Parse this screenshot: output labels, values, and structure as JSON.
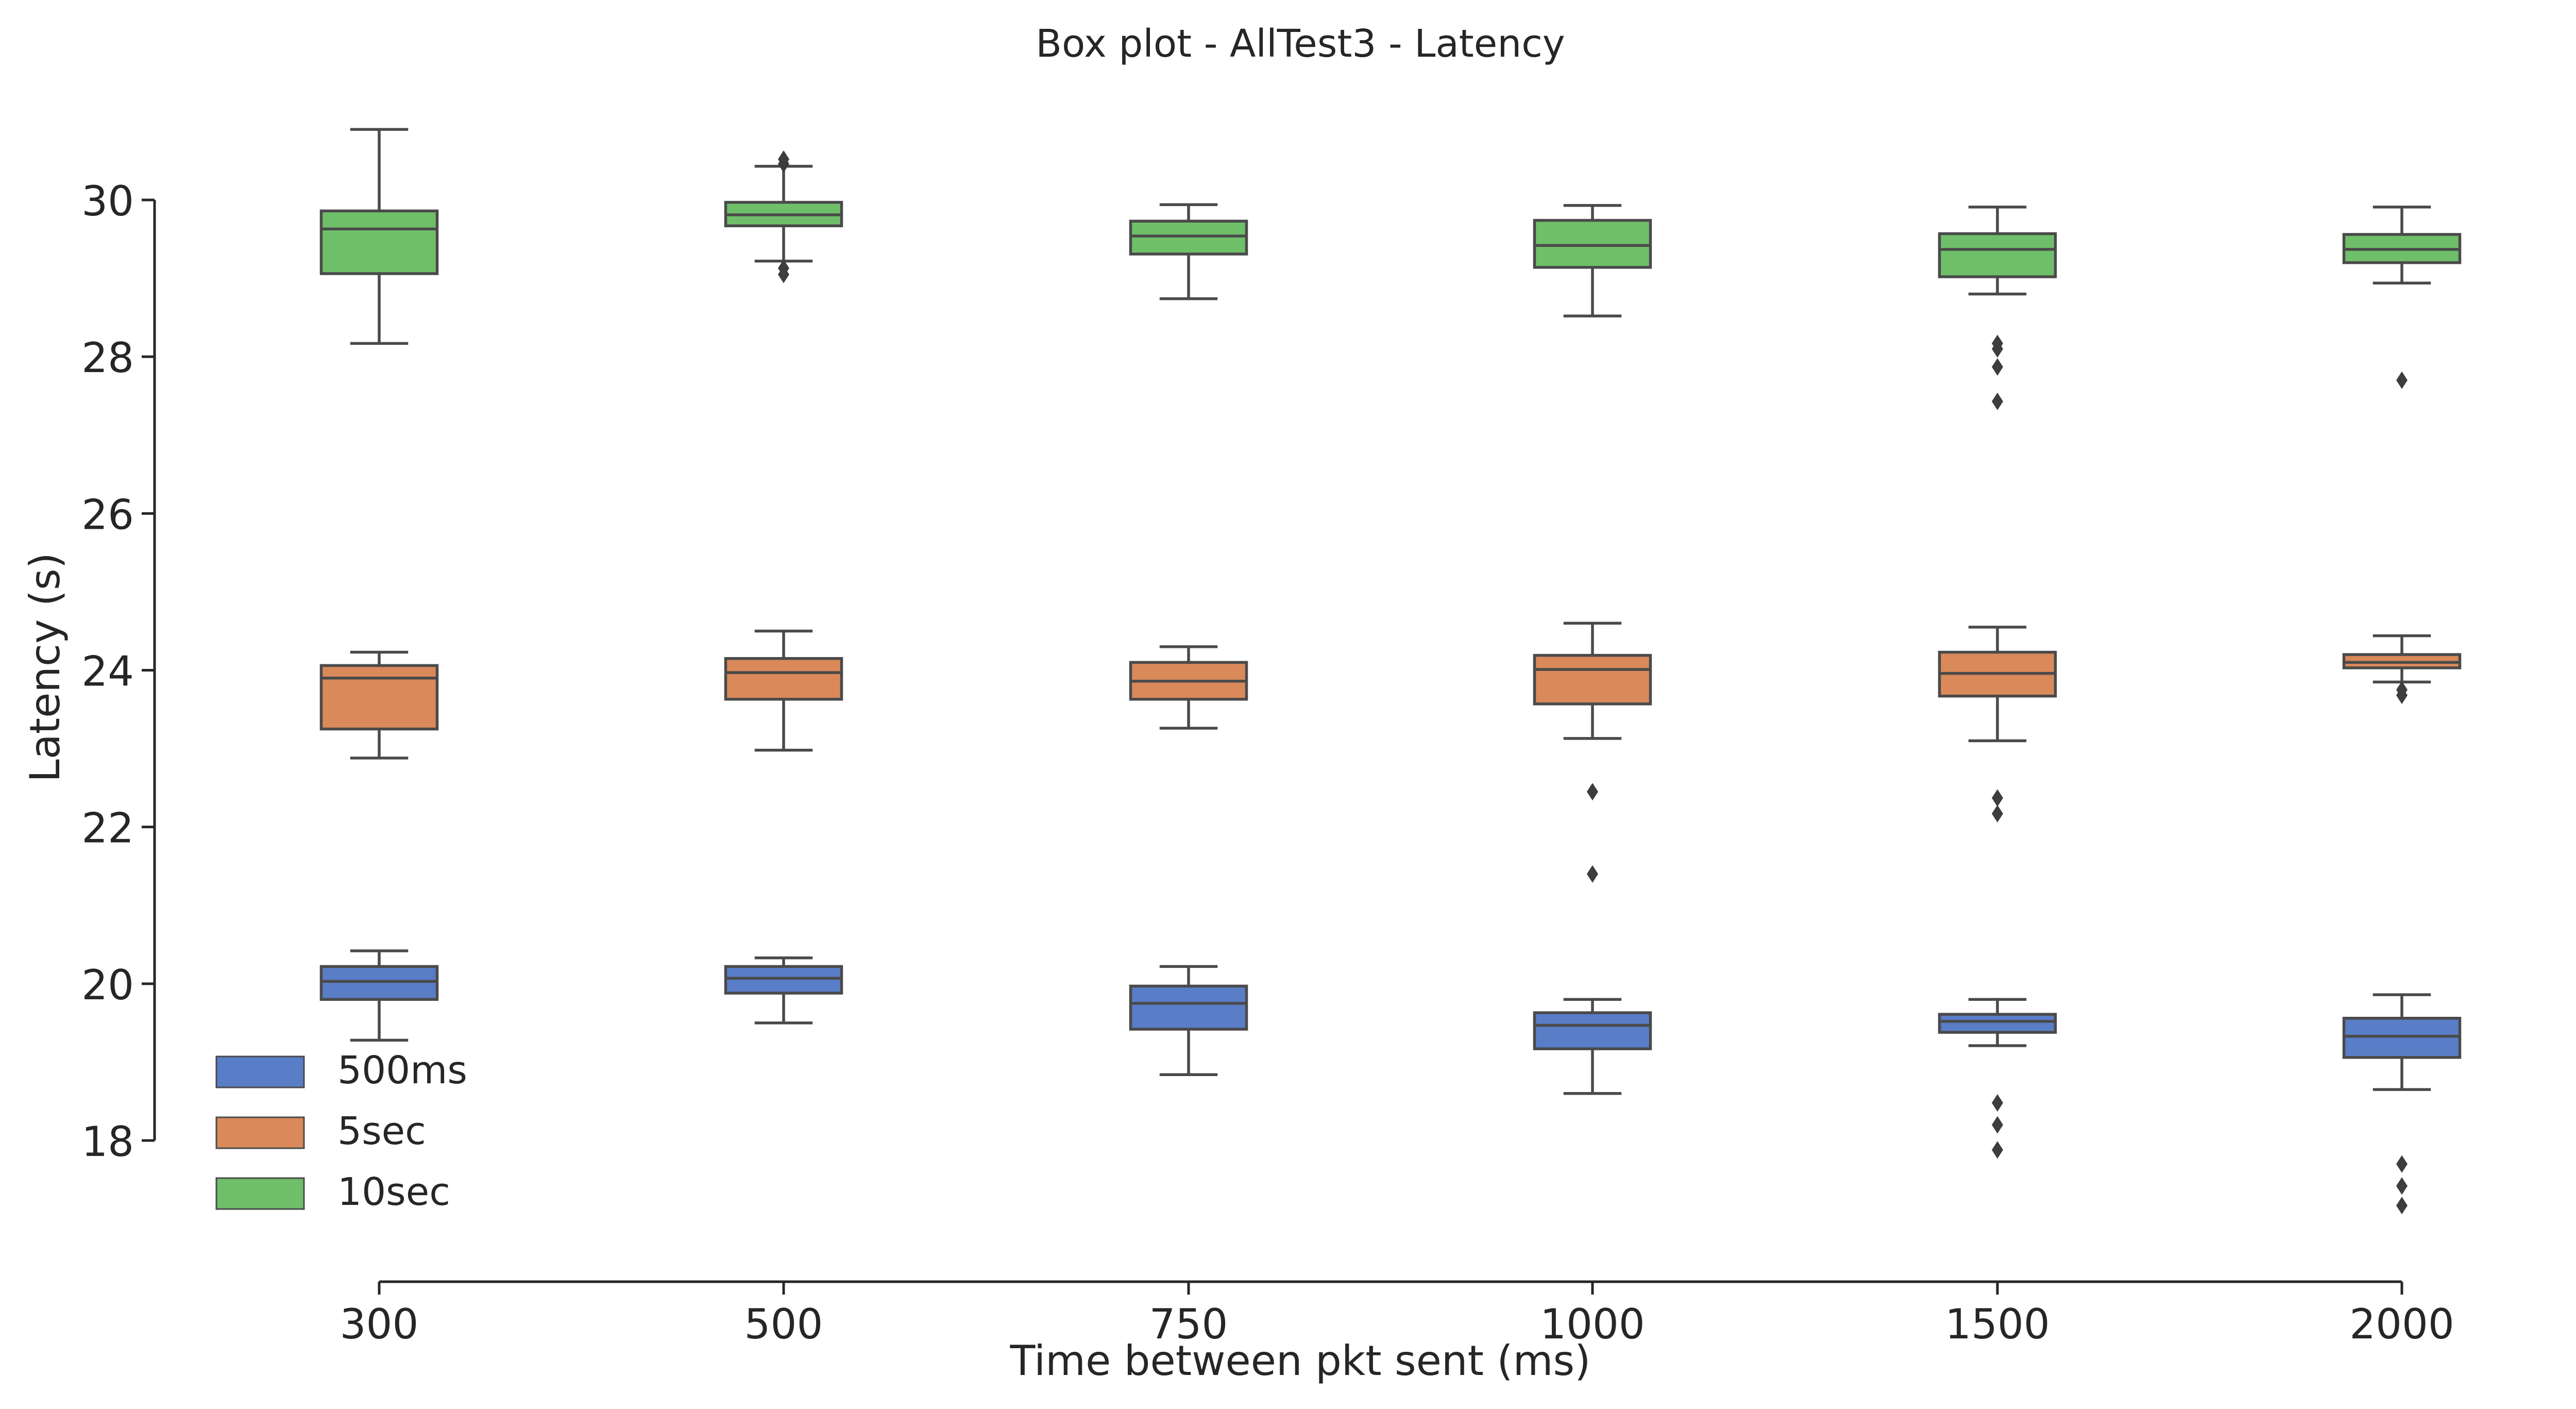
{
  "chart_data": {
    "type": "box",
    "title": "Box plot - AllTest3 - Latency",
    "xlabel": "Time between pkt sent (ms)",
    "ylabel": "Latency (s)",
    "categories": [
      "300",
      "500",
      "750",
      "1000",
      "1500",
      "2000"
    ],
    "yticks": [
      "18",
      "20",
      "22",
      "24",
      "26",
      "28",
      "30"
    ],
    "ylim": [
      16.2,
      31.8
    ],
    "grid": false,
    "legend_position": "lower-left",
    "series": [
      {
        "name": "500ms",
        "color": "#5a7dc7",
        "boxes": [
          {
            "whisker_low": 19.28,
            "q1": 19.8,
            "median": 20.03,
            "q3": 20.22,
            "whisker_high": 20.42,
            "outliers": []
          },
          {
            "whisker_low": 19.5,
            "q1": 19.88,
            "median": 20.07,
            "q3": 20.22,
            "whisker_high": 20.33,
            "outliers": []
          },
          {
            "whisker_low": 18.84,
            "q1": 19.42,
            "median": 19.75,
            "q3": 19.97,
            "whisker_high": 20.22,
            "outliers": []
          },
          {
            "whisker_low": 18.6,
            "q1": 19.17,
            "median": 19.47,
            "q3": 19.63,
            "whisker_high": 19.8,
            "outliers": []
          },
          {
            "whisker_low": 19.21,
            "q1": 19.38,
            "median": 19.52,
            "q3": 19.61,
            "whisker_high": 19.8,
            "outliers": [
              18.48,
              18.2,
              17.88
            ]
          },
          {
            "whisker_low": 18.65,
            "q1": 19.06,
            "median": 19.33,
            "q3": 19.56,
            "whisker_high": 19.86,
            "outliers": [
              17.7,
              17.42,
              17.17
            ]
          }
        ]
      },
      {
        "name": "5sec",
        "color": "#d9895a",
        "boxes": [
          {
            "whisker_low": 22.88,
            "q1": 23.25,
            "median": 23.9,
            "q3": 24.06,
            "whisker_high": 24.23,
            "outliers": []
          },
          {
            "whisker_low": 22.98,
            "q1": 23.63,
            "median": 23.97,
            "q3": 24.15,
            "whisker_high": 24.5,
            "outliers": []
          },
          {
            "whisker_low": 23.26,
            "q1": 23.63,
            "median": 23.86,
            "q3": 24.1,
            "whisker_high": 24.3,
            "outliers": []
          },
          {
            "whisker_low": 23.13,
            "q1": 23.57,
            "median": 24.01,
            "q3": 24.19,
            "whisker_high": 24.6,
            "outliers": [
              22.45,
              21.4
            ]
          },
          {
            "whisker_low": 23.1,
            "q1": 23.67,
            "median": 23.96,
            "q3": 24.23,
            "whisker_high": 24.55,
            "outliers": [
              22.37,
              22.17
            ]
          },
          {
            "whisker_low": 23.85,
            "q1": 24.03,
            "median": 24.1,
            "q3": 24.2,
            "whisker_high": 24.44,
            "outliers": [
              23.75,
              23.68
            ]
          }
        ]
      },
      {
        "name": "10sec",
        "color": "#6fbf6a",
        "boxes": [
          {
            "whisker_low": 28.17,
            "q1": 29.06,
            "median": 29.63,
            "q3": 29.86,
            "whisker_high": 30.9,
            "outliers": []
          },
          {
            "whisker_low": 29.22,
            "q1": 29.67,
            "median": 29.81,
            "q3": 29.97,
            "whisker_high": 30.43,
            "outliers": [
              30.52,
              30.46,
              29.13,
              29.05
            ]
          },
          {
            "whisker_low": 28.74,
            "q1": 29.31,
            "median": 29.54,
            "q3": 29.73,
            "whisker_high": 29.94,
            "outliers": []
          },
          {
            "whisker_low": 28.52,
            "q1": 29.14,
            "median": 29.42,
            "q3": 29.74,
            "whisker_high": 29.93,
            "outliers": []
          },
          {
            "whisker_low": 28.8,
            "q1": 29.02,
            "median": 29.37,
            "q3": 29.57,
            "whisker_high": 29.91,
            "outliers": [
              28.17,
              28.1,
              27.87,
              27.43
            ]
          },
          {
            "whisker_low": 28.94,
            "q1": 29.2,
            "median": 29.37,
            "q3": 29.56,
            "whisker_high": 29.91,
            "outliers": [
              27.7
            ]
          }
        ]
      }
    ]
  }
}
